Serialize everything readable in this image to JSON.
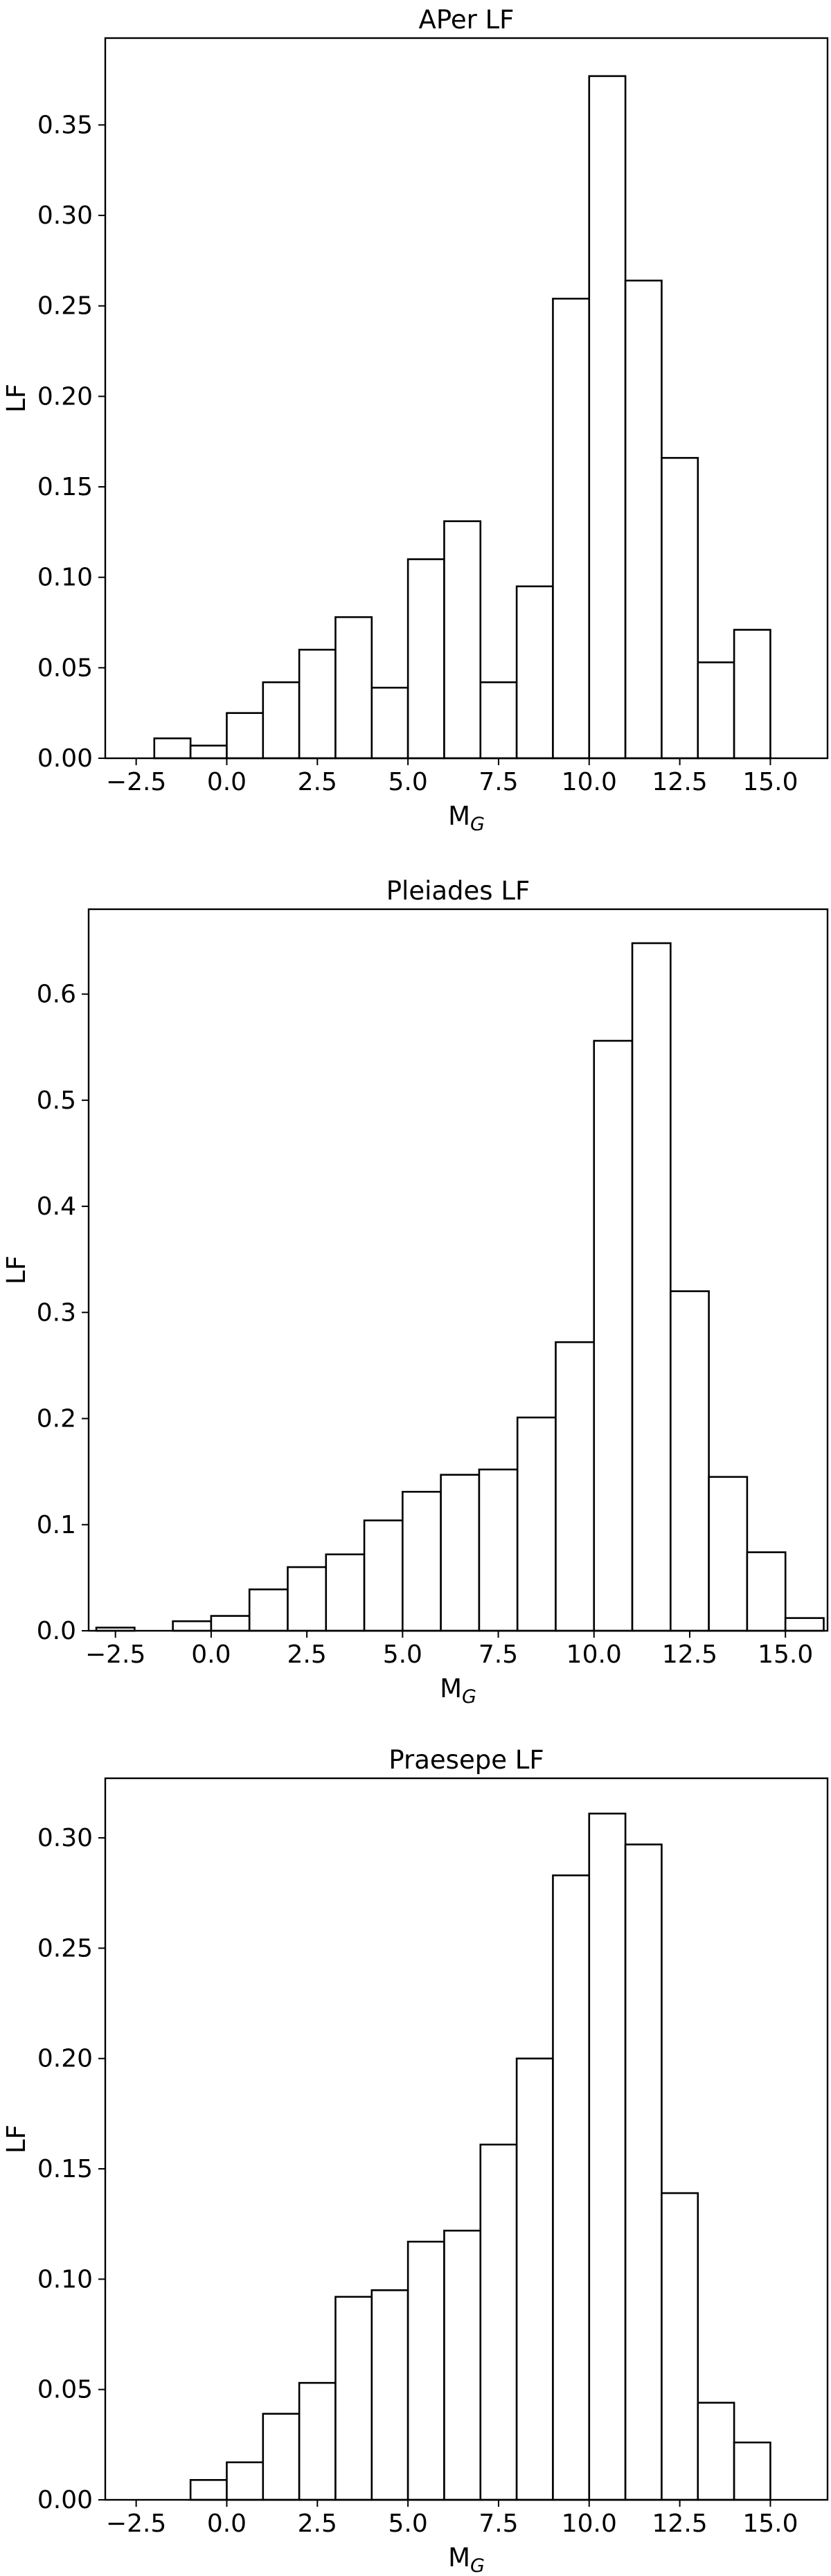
{
  "chart_data": [
    {
      "type": "bar",
      "title": "APer LF",
      "xlabel": "M",
      "xlabel_sub": "G",
      "ylabel": "LF",
      "xlim": [
        -3.2,
        16.1
      ],
      "ylim": [
        0,
        0.398
      ],
      "bin_edges": [
        -2,
        -1,
        0,
        1,
        2,
        3,
        4,
        5,
        6,
        7,
        8,
        9,
        10,
        11,
        12,
        13,
        14,
        15
      ],
      "values": [
        0.011,
        0.007,
        0.025,
        0.042,
        0.06,
        0.078,
        0.039,
        0.11,
        0.131,
        0.042,
        0.095,
        0.254,
        0.377,
        0.264,
        0.166,
        0.053,
        0.071
      ],
      "xticks": [
        -2.5,
        0.0,
        2.5,
        5.0,
        7.5,
        10.0,
        12.5,
        15.0
      ],
      "xtick_labels": [
        "−2.5",
        "0.0",
        "2.5",
        "5.0",
        "7.5",
        "10.0",
        "12.5",
        "15.0"
      ],
      "yticks": [
        0.0,
        0.05,
        0.1,
        0.15,
        0.2,
        0.25,
        0.3,
        0.35
      ],
      "ytick_labels": [
        "0.00",
        "0.05",
        "0.10",
        "0.15",
        "0.20",
        "0.25",
        "0.30",
        "0.35"
      ],
      "grid": false,
      "legend": false
    },
    {
      "type": "bar",
      "title": "Pleiades LF",
      "xlabel": "M",
      "xlabel_sub": "G",
      "ylabel": "LF",
      "xlim": [
        -3.2,
        16.1
      ],
      "ylim": [
        0,
        0.68
      ],
      "bin_edges": [
        -3,
        -2,
        -1,
        0,
        1,
        2,
        3,
        4,
        5,
        6,
        7,
        8,
        9,
        10,
        11,
        12,
        13,
        14,
        15,
        16
      ],
      "values": [
        0.003,
        0.0,
        0.009,
        0.014,
        0.039,
        0.06,
        0.072,
        0.104,
        0.131,
        0.147,
        0.152,
        0.201,
        0.272,
        0.556,
        0.648,
        0.32,
        0.145,
        0.074,
        0.012
      ],
      "xticks": [
        -2.5,
        0.0,
        2.5,
        5.0,
        7.5,
        10.0,
        12.5,
        15.0
      ],
      "xtick_labels": [
        "−2.5",
        "0.0",
        "2.5",
        "5.0",
        "7.5",
        "10.0",
        "12.5",
        "15.0"
      ],
      "yticks": [
        0.0,
        0.1,
        0.2,
        0.3,
        0.4,
        0.5,
        0.6
      ],
      "ytick_labels": [
        "0.0",
        "0.1",
        "0.2",
        "0.3",
        "0.4",
        "0.5",
        "0.6"
      ],
      "grid": false,
      "legend": false
    },
    {
      "type": "bar",
      "title": "Praesepe LF",
      "xlabel": "M",
      "xlabel_sub": "G",
      "ylabel": "LF",
      "xlim": [
        -3.2,
        16.1
      ],
      "ylim": [
        0,
        0.327
      ],
      "bin_edges": [
        -1,
        0,
        1,
        2,
        3,
        4,
        5,
        6,
        7,
        8,
        9,
        10,
        11,
        12,
        13,
        14,
        15
      ],
      "values": [
        0.009,
        0.017,
        0.039,
        0.053,
        0.092,
        0.095,
        0.117,
        0.122,
        0.161,
        0.2,
        0.283,
        0.311,
        0.297,
        0.139,
        0.044,
        0.026
      ],
      "xticks": [
        -2.5,
        0.0,
        2.5,
        5.0,
        7.5,
        10.0,
        12.5,
        15.0
      ],
      "xtick_labels": [
        "−2.5",
        "0.0",
        "2.5",
        "5.0",
        "7.5",
        "10.0",
        "12.5",
        "15.0"
      ],
      "yticks": [
        0.0,
        0.05,
        0.1,
        0.15,
        0.2,
        0.25,
        0.3
      ],
      "ytick_labels": [
        "0.00",
        "0.05",
        "0.10",
        "0.15",
        "0.20",
        "0.25",
        "0.30"
      ],
      "grid": false,
      "legend": false
    }
  ]
}
